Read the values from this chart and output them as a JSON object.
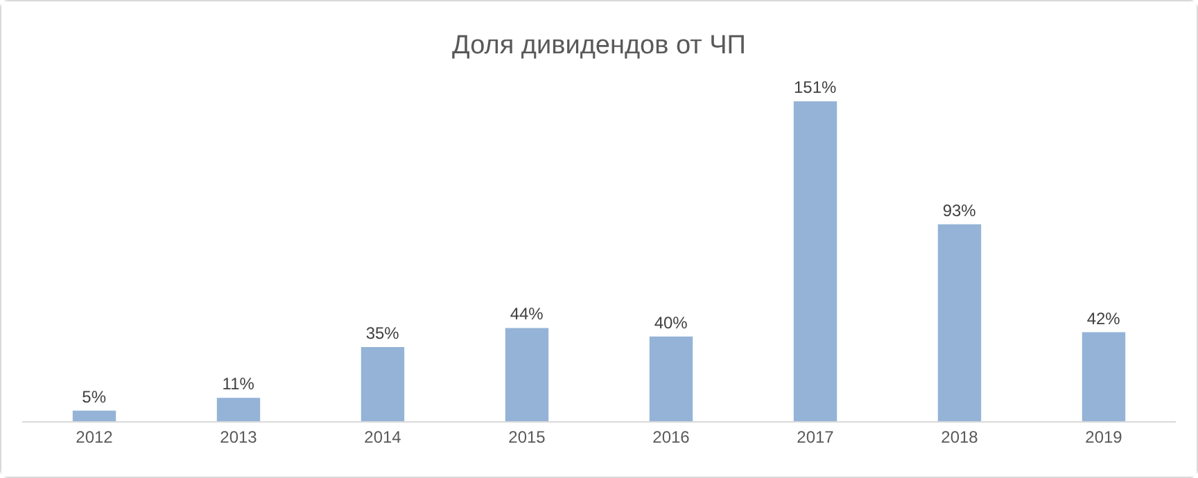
{
  "chart_data": {
    "type": "bar",
    "title": "Доля дивидендов от ЧП",
    "categories": [
      "2012",
      "2013",
      "2014",
      "2015",
      "2016",
      "2017",
      "2018",
      "2019"
    ],
    "values": [
      5,
      11,
      35,
      44,
      40,
      151,
      93,
      42
    ],
    "value_labels": [
      "5%",
      "11%",
      "35%",
      "44%",
      "40%",
      "151%",
      "93%",
      "42%"
    ],
    "color": "#95b3d7",
    "grid": false
  }
}
